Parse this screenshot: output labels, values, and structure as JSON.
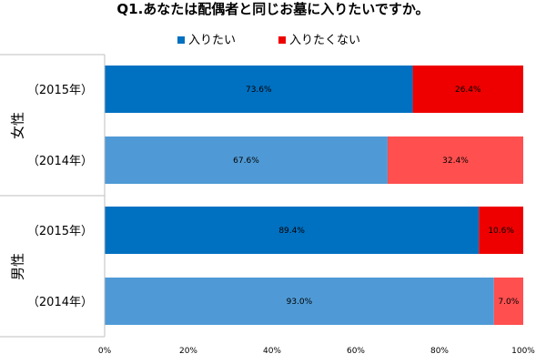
{
  "chart_data": {
    "type": "bar",
    "orientation": "horizontal",
    "stacked": true,
    "title": "Q1.あなたは配偶者と同じお墓に入りたいですか。",
    "xlabel": "",
    "ylabel": "",
    "xlim": [
      0,
      100
    ],
    "unit": "%",
    "ticks": [
      "0%",
      "20%",
      "40%",
      "60%",
      "80%",
      "100%"
    ],
    "legend": {
      "position": "top",
      "entries": [
        "入りたい",
        "入りたくない"
      ]
    },
    "series": [
      {
        "name": "入りたい",
        "colors": {
          "2015": "#0070c0",
          "2014": "#4f9ad6"
        }
      },
      {
        "name": "入りたくない",
        "colors": {
          "2015": "#ee0000",
          "2014": "#ff4f4f"
        }
      }
    ],
    "groups": [
      {
        "name": "女性",
        "rows": [
          {
            "category": "（2015年）",
            "year": "2015",
            "values": [
              73.6,
              26.4
            ],
            "labels": [
              "73.6%",
              "26.4%"
            ]
          },
          {
            "category": "（2014年）",
            "year": "2014",
            "values": [
              67.6,
              32.4
            ],
            "labels": [
              "67.6%",
              "32.4%"
            ]
          }
        ]
      },
      {
        "name": "男性",
        "rows": [
          {
            "category": "（2015年）",
            "year": "2015",
            "values": [
              89.4,
              10.6
            ],
            "labels": [
              "89.4%",
              "10.6%"
            ]
          },
          {
            "category": "（2014年）",
            "year": "2014",
            "values": [
              93.0,
              7.0
            ],
            "labels": [
              "93.0%",
              "7.0%"
            ]
          }
        ]
      }
    ],
    "grid": false
  }
}
